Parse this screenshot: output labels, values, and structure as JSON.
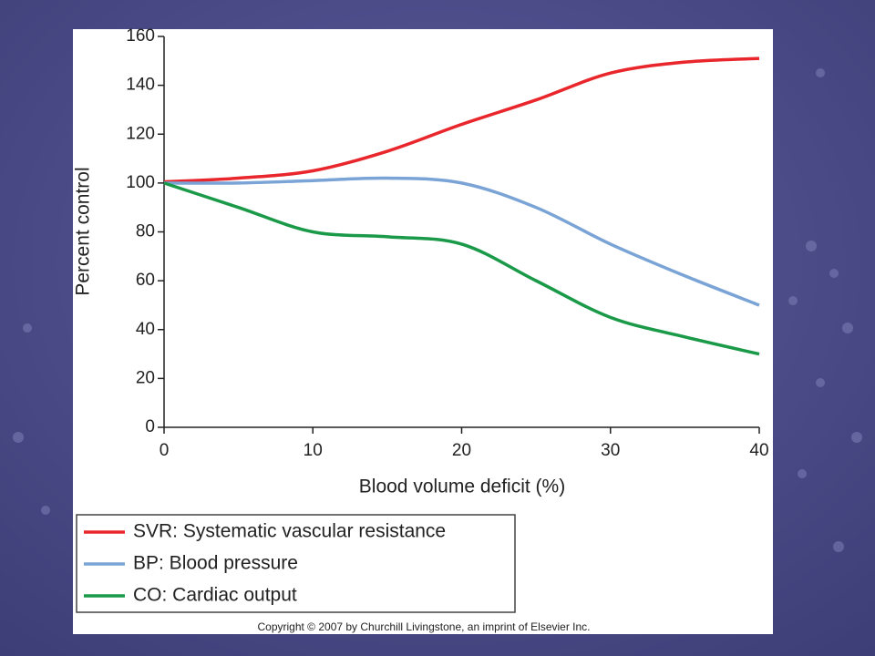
{
  "chart_data": {
    "type": "line",
    "x_label": "Blood volume deficit (%)",
    "y_label": "Percent control",
    "x": [
      0,
      5,
      10,
      15,
      20,
      25,
      30,
      35,
      40
    ],
    "series": [
      {
        "name": "SVR: Systematic vascular resistance",
        "color": "#e8262b",
        "values": [
          100.5,
          102,
          105,
          113,
          124,
          134,
          145,
          149.5,
          151
        ]
      },
      {
        "name": "BP: Blood pressure",
        "color": "#7aa3d6",
        "values": [
          100,
          100,
          101,
          102,
          100,
          90,
          75,
          62,
          50
        ]
      },
      {
        "name": "CO: Cardiac output",
        "color": "#1a9a48",
        "values": [
          100,
          90,
          80,
          78,
          75,
          60,
          45,
          37,
          30
        ]
      }
    ],
    "xlim": [
      0,
      40
    ],
    "xticks": [
      0,
      10,
      20,
      30,
      40
    ],
    "ylim": [
      0,
      160
    ],
    "yticks": [
      0,
      20,
      40,
      60,
      80,
      100,
      120,
      140,
      160
    ],
    "legend": "below"
  },
  "copyright": "Copyright © 2007 by Churchill Livingstone, an imprint of Elsevier Inc."
}
